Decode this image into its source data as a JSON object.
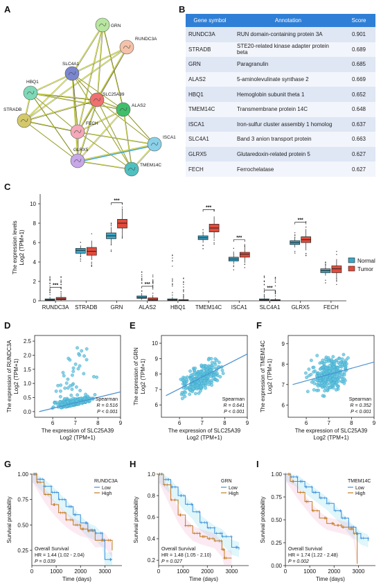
{
  "panels": {
    "A": "A",
    "B": "B",
    "C": "C",
    "D": "D",
    "E": "E",
    "F": "F",
    "G": "G",
    "H": "H",
    "I": "I"
  },
  "network": {
    "nodes": [
      {
        "id": "GRN",
        "color": "#b8e6a0"
      },
      {
        "id": "RUNDC3A",
        "color": "#f4c2a8"
      },
      {
        "id": "SLC4A1",
        "color": "#7a86cf"
      },
      {
        "id": "HBQ1",
        "color": "#7fd8b8"
      },
      {
        "id": "SLC25A39",
        "color": "#f07070"
      },
      {
        "id": "ALAS2",
        "color": "#3fbf6a"
      },
      {
        "id": "STRADB",
        "color": "#d4c96a"
      },
      {
        "id": "FECH",
        "color": "#f4a8b8"
      },
      {
        "id": "ISCA1",
        "color": "#8ad0e8"
      },
      {
        "id": "GLRX5",
        "color": "#c8a8e8"
      },
      {
        "id": "TMEM14C",
        "color": "#4fc0c0"
      }
    ]
  },
  "table": {
    "headers": [
      "Gene symbol",
      "Annotation",
      "Score"
    ],
    "rows": [
      [
        "RUNDC3A",
        "RUN domain-containing protein 3A",
        "0.901"
      ],
      [
        "STRADB",
        "STE20-related kinase adapter protein beta",
        "0.689"
      ],
      [
        "GRN",
        "Paragranulin",
        "0.685"
      ],
      [
        "ALAS2",
        "5-aminolevulinate synthase 2",
        "0.669"
      ],
      [
        "HBQ1",
        "Hemoglobin subunit theta 1",
        "0.652"
      ],
      [
        "TMEM14C",
        "Transmembrane protein 14C",
        "0.648"
      ],
      [
        "ISCA1",
        "Iron-sulfur cluster assembly 1 homolog",
        "0.637"
      ],
      [
        "SLC4A1",
        "Band 3 anion transport protein",
        "0.663"
      ],
      [
        "GLRX5",
        "Glutaredoxin-related protein 5",
        "0.627"
      ],
      [
        "FECH",
        "Ferrochelatase",
        "0.627"
      ]
    ]
  },
  "chart_data": [
    {
      "type": "box",
      "ylabel_line1": "The expression levels",
      "ylabel_line2": "Log2 (TPM+1)",
      "ylim": [
        0,
        11
      ],
      "yticks": [
        0,
        2,
        4,
        6,
        8,
        10
      ],
      "categories": [
        "RUNDC3A",
        "STRADB",
        "GRN",
        "ALAS2",
        "HBQ1",
        "TMEM14C",
        "ISCA1",
        "SLC4A1",
        "GLRX5",
        "FECH"
      ],
      "significance": [
        "***",
        "",
        "***",
        "***",
        "",
        "***",
        "***",
        "***",
        "***",
        ""
      ],
      "legend": [
        {
          "name": "Normal",
          "color": "#3aa7c8"
        },
        {
          "name": "Tumor",
          "color": "#e24b3b"
        }
      ],
      "series": [
        {
          "name": "Normal",
          "boxes": [
            [
              0,
              0.05,
              0.1,
              0.2,
              0.4
            ],
            [
              4.6,
              4.9,
              5.2,
              5.4,
              5.7
            ],
            [
              5.8,
              6.4,
              6.7,
              7.0,
              7.6
            ],
            [
              0.1,
              0.25,
              0.35,
              0.5,
              0.8
            ],
            [
              0,
              0.05,
              0.1,
              0.2,
              0.4
            ],
            [
              6.0,
              6.3,
              6.5,
              6.7,
              7.0
            ],
            [
              3.8,
              4.1,
              4.3,
              4.5,
              4.8
            ],
            [
              0,
              0.05,
              0.1,
              0.2,
              0.4
            ],
            [
              5.5,
              5.8,
              6.0,
              6.2,
              6.5
            ],
            [
              2.6,
              2.9,
              3.1,
              3.3,
              3.6
            ]
          ]
        },
        {
          "name": "Tumor",
          "boxes": [
            [
              0,
              0.1,
              0.2,
              0.35,
              0.7
            ],
            [
              4.2,
              4.7,
              5.1,
              5.5,
              6.2
            ],
            [
              6.6,
              7.5,
              8.0,
              8.4,
              9.4
            ],
            [
              0,
              0.05,
              0.15,
              0.3,
              0.6
            ],
            [
              0,
              0.03,
              0.06,
              0.12,
              0.3
            ],
            [
              6.4,
              7.1,
              7.5,
              7.9,
              8.7
            ],
            [
              3.9,
              4.5,
              4.8,
              5.0,
              5.6
            ],
            [
              0,
              0.03,
              0.06,
              0.12,
              0.3
            ],
            [
              5.2,
              6.0,
              6.3,
              6.6,
              7.4
            ],
            [
              2.3,
              2.9,
              3.3,
              3.6,
              4.3
            ]
          ]
        }
      ]
    },
    {
      "type": "scatter",
      "xlabel_line1": "The expression of SLC25A39",
      "xlabel_line2": "Log2 (TPM+1)",
      "ylabel_line1": "The expression of RUNDC3A",
      "ylabel_line2": "Log2 (TPM+1)",
      "xlim": [
        5.2,
        9
      ],
      "ylim": [
        -0.2,
        2.7
      ],
      "xticks": [
        6,
        7,
        8,
        9
      ],
      "yticks": [
        0.0,
        0.5,
        1.0,
        1.5,
        2.0,
        2.5
      ],
      "stat_method": "Spearman",
      "r_text": "R = 0.516",
      "p_text": "P < 0.001",
      "fit": [
        [
          5.4,
          0.0
        ],
        [
          9.0,
          0.7
        ]
      ]
    },
    {
      "type": "scatter",
      "xlabel_line1": "The expression of SLC25A39",
      "xlabel_line2": "Log2 (TPM+1)",
      "ylabel_line1": "The expression of GRN",
      "ylabel_line2": "Log2 (TPM+1)",
      "xlim": [
        5.2,
        9
      ],
      "ylim": [
        5.2,
        10.5
      ],
      "xticks": [
        6,
        7,
        8,
        9
      ],
      "yticks": [
        6,
        7,
        8,
        9,
        10
      ],
      "stat_method": "Spearman",
      "r_text": "R = 0.641",
      "p_text": "P < 0.001",
      "fit": [
        [
          5.4,
          6.6
        ],
        [
          9.0,
          9.3
        ]
      ]
    },
    {
      "type": "scatter",
      "xlabel_line1": "The expression of SLC25A39",
      "xlabel_line2": "Log2 (TPM+1)",
      "ylabel_line1": "The expression of TMEM14C",
      "ylabel_line2": "Log2 (TPM+1)",
      "xlim": [
        5.2,
        9
      ],
      "ylim": [
        5.4,
        9.4
      ],
      "xticks": [
        6,
        7,
        8,
        9
      ],
      "yticks": [
        6,
        7,
        8,
        9
      ],
      "stat_method": "Spearman",
      "r_text": "R = 0.352",
      "p_text": "P < 0.001",
      "fit": [
        [
          5.4,
          7.0
        ],
        [
          9.0,
          8.1
        ]
      ]
    },
    {
      "type": "line",
      "title": "RUNDC3A",
      "xlabel": "Time (days)",
      "ylabel": "Survival probability",
      "xlim": [
        0,
        3700
      ],
      "ylim": [
        0.1,
        1.0
      ],
      "xticks": [
        0,
        1000,
        2000,
        3000
      ],
      "yticks": [
        1.0,
        0.75,
        0.5,
        0.25
      ],
      "ytick_labels": [
        "1.00",
        "0.75",
        "0.50",
        "0.25"
      ],
      "legend": [
        {
          "name": "Low",
          "color": "#3d8fd9"
        },
        {
          "name": "High",
          "color": "#c07a1e"
        }
      ],
      "stats_title": "Overall Survival",
      "hr_text": "HR = 1.44 (1.02 - 2.04)",
      "p_text": "P = 0.039",
      "low": [
        [
          0,
          1
        ],
        [
          200,
          0.95
        ],
        [
          500,
          0.88
        ],
        [
          800,
          0.82
        ],
        [
          1100,
          0.75
        ],
        [
          1400,
          0.68
        ],
        [
          1700,
          0.6
        ],
        [
          2000,
          0.52
        ],
        [
          2300,
          0.45
        ],
        [
          2600,
          0.42
        ],
        [
          2900,
          0.35
        ],
        [
          3000,
          0.16
        ],
        [
          3300,
          0.16
        ]
      ],
      "high": [
        [
          0,
          1
        ],
        [
          200,
          0.92
        ],
        [
          500,
          0.8
        ],
        [
          800,
          0.7
        ],
        [
          1100,
          0.62
        ],
        [
          1400,
          0.55
        ],
        [
          1700,
          0.5
        ],
        [
          2000,
          0.46
        ],
        [
          2300,
          0.44
        ],
        [
          2600,
          0.35
        ],
        [
          3000,
          0.35
        ],
        [
          3300,
          0.25
        ]
      ]
    },
    {
      "type": "line",
      "title": "GRN",
      "xlabel": "Time (days)",
      "ylabel": "Survival probability",
      "xlim": [
        0,
        3700
      ],
      "ylim": [
        0.15,
        1.0
      ],
      "xticks": [
        0,
        1000,
        2000,
        3000
      ],
      "yticks": [
        1.0,
        0.8,
        0.6,
        0.4,
        0.2
      ],
      "ytick_labels": [
        "1.0",
        "0.8",
        "0.6",
        "0.4",
        "0.2"
      ],
      "legend": [
        {
          "name": "Low",
          "color": "#3d8fd9"
        },
        {
          "name": "High",
          "color": "#c07a1e"
        }
      ],
      "stats_title": "Overall Survival",
      "hr_text": "HR = 1.48 (1.05 - 2.10)",
      "p_text": "P = 0.027",
      "low": [
        [
          0,
          1
        ],
        [
          200,
          0.95
        ],
        [
          500,
          0.88
        ],
        [
          800,
          0.8
        ],
        [
          1100,
          0.72
        ],
        [
          1400,
          0.65
        ],
        [
          1700,
          0.55
        ],
        [
          2000,
          0.5
        ],
        [
          2300,
          0.45
        ],
        [
          2600,
          0.42
        ],
        [
          3000,
          0.32
        ],
        [
          3300,
          0.3
        ]
      ],
      "high": [
        [
          0,
          1
        ],
        [
          200,
          0.9
        ],
        [
          500,
          0.76
        ],
        [
          800,
          0.62
        ],
        [
          1100,
          0.52
        ],
        [
          1400,
          0.45
        ],
        [
          1700,
          0.42
        ],
        [
          2000,
          0.4
        ],
        [
          2300,
          0.38
        ],
        [
          2600,
          0.3
        ],
        [
          2700,
          0.22
        ],
        [
          3000,
          0.22
        ]
      ]
    },
    {
      "type": "line",
      "title": "TMEM14C",
      "xlabel": "Time (days)",
      "ylabel": "Survival probability",
      "xlim": [
        0,
        3700
      ],
      "ylim": [
        0,
        1.0
      ],
      "xticks": [
        0,
        1000,
        2000,
        3000
      ],
      "yticks": [
        1.0,
        0.75,
        0.5,
        0.25,
        0.0
      ],
      "ytick_labels": [
        "1.00",
        "0.75",
        "0.50",
        "0.25",
        "0.00"
      ],
      "legend": [
        {
          "name": "Low",
          "color": "#3d8fd9"
        },
        {
          "name": "High",
          "color": "#c07a1e"
        }
      ],
      "stats_title": "Overall Survival",
      "hr_text": "HR = 1.74 (1.22 - 2.48)",
      "p_text": "P = 0.002",
      "low": [
        [
          0,
          1
        ],
        [
          200,
          0.97
        ],
        [
          500,
          0.92
        ],
        [
          800,
          0.86
        ],
        [
          1100,
          0.8
        ],
        [
          1400,
          0.74
        ],
        [
          1700,
          0.68
        ],
        [
          2000,
          0.6
        ],
        [
          2300,
          0.52
        ],
        [
          2600,
          0.42
        ],
        [
          2900,
          0.35
        ],
        [
          3100,
          0.3
        ],
        [
          3400,
          0.27
        ]
      ],
      "high": [
        [
          0,
          1
        ],
        [
          200,
          0.92
        ],
        [
          500,
          0.8
        ],
        [
          800,
          0.7
        ],
        [
          1100,
          0.6
        ],
        [
          1400,
          0.52
        ],
        [
          1700,
          0.46
        ],
        [
          2000,
          0.44
        ],
        [
          2300,
          0.42
        ],
        [
          2600,
          0.4
        ],
        [
          2800,
          0.35
        ],
        [
          2950,
          0.02
        ]
      ]
    }
  ]
}
